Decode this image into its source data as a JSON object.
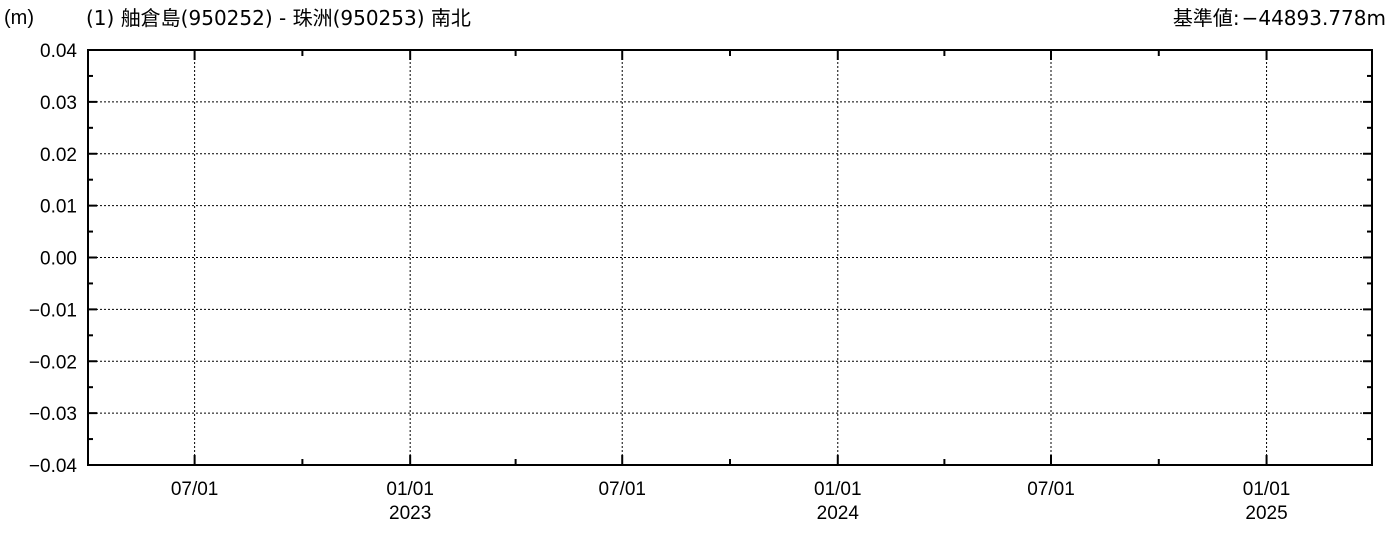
{
  "header": {
    "unit": "(m)",
    "title": "(1) 舳倉島(950252) - 珠洲(950253) 南北",
    "reference_label": "基準値:",
    "reference_value": "−44893.778m"
  },
  "chart_data": {
    "type": "line",
    "title": "(1) 舳倉島(950252) - 珠洲(950253) 南北",
    "ylabel": "(m)",
    "xlabel": "",
    "ylim": [
      -0.04,
      0.04
    ],
    "yticks": [
      0.04,
      0.03,
      0.02,
      0.01,
      0.0,
      -0.01,
      -0.02,
      -0.03,
      -0.04
    ],
    "ytick_labels": [
      "0.04",
      "0.03",
      "0.02",
      "0.01",
      "0.00",
      "−0.01",
      "−0.02",
      "−0.03",
      "−0.04"
    ],
    "xlim": [
      "2022-04-01",
      "2025-04-01"
    ],
    "xticks": [
      {
        "date": "2022-07-01",
        "label": "07/01",
        "year": ""
      },
      {
        "date": "2023-01-01",
        "label": "01/01",
        "year": "2023"
      },
      {
        "date": "2023-07-01",
        "label": "07/01",
        "year": ""
      },
      {
        "date": "2024-01-01",
        "label": "01/01",
        "year": "2024"
      },
      {
        "date": "2024-07-01",
        "label": "07/01",
        "year": ""
      },
      {
        "date": "2025-01-01",
        "label": "01/01",
        "year": "2025"
      }
    ],
    "minor_ticks": [
      "2022-10-01",
      "2023-04-01",
      "2023-10-01",
      "2024-04-01",
      "2024-10-01",
      "2025-04-01"
    ],
    "grid": true,
    "series": [],
    "colors": {
      "axis": "#000000",
      "grid": "#000000"
    }
  }
}
